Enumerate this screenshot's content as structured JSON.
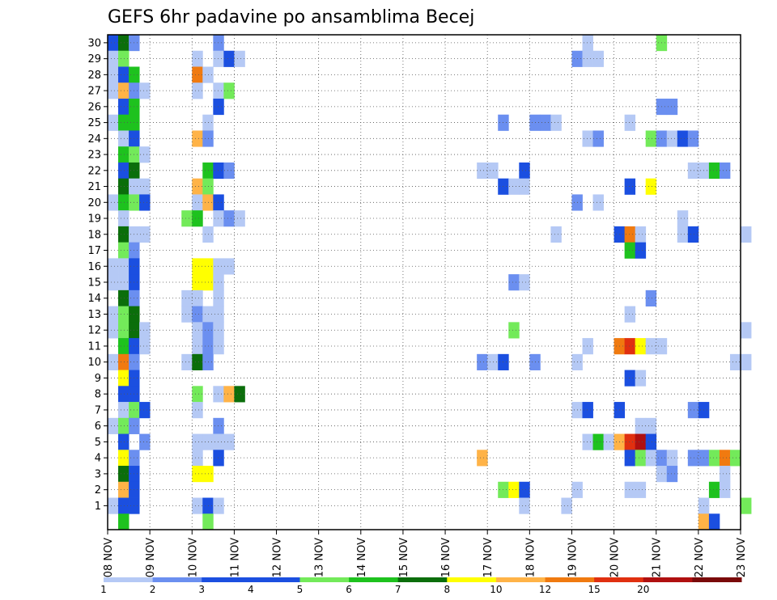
{
  "chart_data": {
    "type": "heatmap",
    "title": "GEFS 6hr padavine po ansamblima Becej",
    "xlabel": "",
    "ylabel": "",
    "x_ticks": [
      "08 NOV",
      "09 NOV",
      "10 NOV",
      "11 NOV",
      "12 NOV",
      "13 NOV",
      "14 NOV",
      "15 NOV",
      "16 NOV",
      "17 NOV",
      "18 NOV",
      "19 NOV",
      "20 NOV",
      "21 NOV",
      "22 NOV",
      "23 NOV"
    ],
    "y_ticks": [
      "1",
      "2",
      "3",
      "4",
      "5",
      "6",
      "7",
      "8",
      "9",
      "10",
      "11",
      "12",
      "13",
      "14",
      "15",
      "16",
      "17",
      "18",
      "19",
      "20",
      "21",
      "22",
      "23",
      "24",
      "25",
      "26",
      "27",
      "28",
      "29",
      "30"
    ],
    "grid": true,
    "time_step_hours": 6,
    "colorbar": {
      "labels": [
        "1",
        "2",
        "3",
        "4",
        "5",
        "6",
        "7",
        "8",
        "10",
        "12",
        "15",
        "20"
      ],
      "colors": [
        "#b5c9f5",
        "#6b8ff0",
        "#1b4fe0",
        "#1b4fe0",
        "#73ea5a",
        "#1ec21e",
        "#0b6e0b",
        "#ffff00",
        "#ffb347",
        "#f07a10",
        "#e03010",
        "#b01010",
        "#7a0a0a"
      ]
    },
    "colors": {
      "1": "#b5c9f5",
      "2": "#6b8ff0",
      "3": "#1b4fe0",
      "4": "#73ea5a",
      "5": "#1ec21e",
      "6": "#0b6e0b",
      "7": "#ffff00",
      "8": "#ffb347",
      "9": "#f07a10",
      "10": "#e03010",
      "11": "#b01010",
      "12": "#7a0a0a"
    },
    "cells": [
      [
        30,
        0,
        3
      ],
      [
        30,
        1,
        6
      ],
      [
        30,
        2,
        2
      ],
      [
        30,
        10,
        2
      ],
      [
        30,
        45,
        1
      ],
      [
        30,
        52,
        4
      ],
      [
        29,
        0,
        1
      ],
      [
        29,
        1,
        4
      ],
      [
        29,
        8,
        1
      ],
      [
        29,
        10,
        1
      ],
      [
        29,
        11,
        3
      ],
      [
        29,
        12,
        1
      ],
      [
        29,
        44,
        2
      ],
      [
        29,
        45,
        1
      ],
      [
        29,
        46,
        1
      ],
      [
        28,
        0,
        1
      ],
      [
        28,
        1,
        3
      ],
      [
        28,
        2,
        5
      ],
      [
        28,
        8,
        9
      ],
      [
        28,
        9,
        1
      ],
      [
        27,
        0,
        1
      ],
      [
        27,
        1,
        8
      ],
      [
        27,
        2,
        2
      ],
      [
        27,
        3,
        1
      ],
      [
        27,
        8,
        1
      ],
      [
        27,
        10,
        1
      ],
      [
        27,
        11,
        4
      ],
      [
        26,
        1,
        3
      ],
      [
        26,
        2,
        5
      ],
      [
        26,
        10,
        3
      ],
      [
        26,
        52,
        2
      ],
      [
        26,
        53,
        2
      ],
      [
        25,
        0,
        1
      ],
      [
        25,
        1,
        5
      ],
      [
        25,
        2,
        5
      ],
      [
        25,
        9,
        1
      ],
      [
        25,
        37,
        2
      ],
      [
        25,
        40,
        2
      ],
      [
        25,
        41,
        2
      ],
      [
        25,
        42,
        1
      ],
      [
        25,
        49,
        1
      ],
      [
        24,
        1,
        1
      ],
      [
        24,
        2,
        3
      ],
      [
        24,
        8,
        8
      ],
      [
        24,
        9,
        2
      ],
      [
        24,
        45,
        1
      ],
      [
        24,
        46,
        2
      ],
      [
        24,
        51,
        4
      ],
      [
        24,
        52,
        2
      ],
      [
        24,
        53,
        1
      ],
      [
        24,
        54,
        3
      ],
      [
        24,
        55,
        2
      ],
      [
        23,
        1,
        5
      ],
      [
        23,
        2,
        4
      ],
      [
        23,
        3,
        1
      ],
      [
        22,
        1,
        3
      ],
      [
        22,
        2,
        6
      ],
      [
        22,
        9,
        5
      ],
      [
        22,
        10,
        3
      ],
      [
        22,
        11,
        2
      ],
      [
        22,
        35,
        1
      ],
      [
        22,
        36,
        1
      ],
      [
        22,
        39,
        3
      ],
      [
        22,
        55,
        1
      ],
      [
        22,
        56,
        1
      ],
      [
        22,
        57,
        5
      ],
      [
        22,
        58,
        2
      ],
      [
        21,
        1,
        6
      ],
      [
        21,
        2,
        1
      ],
      [
        21,
        3,
        1
      ],
      [
        21,
        8,
        8
      ],
      [
        21,
        9,
        4
      ],
      [
        21,
        37,
        3
      ],
      [
        21,
        38,
        1
      ],
      [
        21,
        39,
        1
      ],
      [
        21,
        49,
        3
      ],
      [
        21,
        51,
        7
      ],
      [
        20,
        0,
        1
      ],
      [
        20,
        1,
        5
      ],
      [
        20,
        2,
        4
      ],
      [
        20,
        3,
        3
      ],
      [
        20,
        8,
        1
      ],
      [
        20,
        9,
        8
      ],
      [
        20,
        10,
        3
      ],
      [
        20,
        44,
        2
      ],
      [
        20,
        46,
        1
      ],
      [
        19,
        1,
        1
      ],
      [
        19,
        7,
        4
      ],
      [
        19,
        8,
        5
      ],
      [
        19,
        10,
        1
      ],
      [
        19,
        11,
        2
      ],
      [
        19,
        12,
        1
      ],
      [
        19,
        54,
        1
      ],
      [
        18,
        1,
        6
      ],
      [
        18,
        2,
        1
      ],
      [
        18,
        3,
        1
      ],
      [
        18,
        9,
        1
      ],
      [
        18,
        42,
        1
      ],
      [
        18,
        48,
        3
      ],
      [
        18,
        49,
        9
      ],
      [
        18,
        50,
        1
      ],
      [
        18,
        54,
        1
      ],
      [
        18,
        55,
        3
      ],
      [
        18,
        60,
        1
      ],
      [
        17,
        1,
        4
      ],
      [
        17,
        2,
        2
      ],
      [
        17,
        49,
        5
      ],
      [
        17,
        50,
        3
      ],
      [
        16,
        0,
        1
      ],
      [
        16,
        1,
        1
      ],
      [
        16,
        2,
        3
      ],
      [
        16,
        8,
        7
      ],
      [
        16,
        9,
        7
      ],
      [
        16,
        10,
        1
      ],
      [
        16,
        11,
        1
      ],
      [
        15,
        0,
        1
      ],
      [
        15,
        1,
        1
      ],
      [
        15,
        2,
        3
      ],
      [
        15,
        8,
        7
      ],
      [
        15,
        9,
        7
      ],
      [
        15,
        10,
        1
      ],
      [
        15,
        38,
        2
      ],
      [
        15,
        39,
        1
      ],
      [
        14,
        1,
        6
      ],
      [
        14,
        2,
        2
      ],
      [
        14,
        7,
        1
      ],
      [
        14,
        8,
        1
      ],
      [
        14,
        10,
        1
      ],
      [
        14,
        51,
        2
      ],
      [
        13,
        0,
        1
      ],
      [
        13,
        1,
        4
      ],
      [
        13,
        2,
        6
      ],
      [
        13,
        7,
        1
      ],
      [
        13,
        8,
        2
      ],
      [
        13,
        9,
        1
      ],
      [
        13,
        10,
        1
      ],
      [
        13,
        49,
        1
      ],
      [
        12,
        0,
        1
      ],
      [
        12,
        1,
        4
      ],
      [
        12,
        2,
        6
      ],
      [
        12,
        3,
        1
      ],
      [
        12,
        8,
        1
      ],
      [
        12,
        9,
        2
      ],
      [
        12,
        10,
        1
      ],
      [
        12,
        38,
        4
      ],
      [
        12,
        60,
        1
      ],
      [
        11,
        1,
        5
      ],
      [
        11,
        2,
        3
      ],
      [
        11,
        3,
        1
      ],
      [
        11,
        8,
        1
      ],
      [
        11,
        9,
        2
      ],
      [
        11,
        10,
        1
      ],
      [
        11,
        45,
        1
      ],
      [
        11,
        48,
        9
      ],
      [
        11,
        49,
        10
      ],
      [
        11,
        50,
        7
      ],
      [
        11,
        51,
        1
      ],
      [
        11,
        52,
        1
      ],
      [
        10,
        0,
        1
      ],
      [
        10,
        1,
        9
      ],
      [
        10,
        2,
        2
      ],
      [
        10,
        7,
        1
      ],
      [
        10,
        8,
        6
      ],
      [
        10,
        9,
        2
      ],
      [
        10,
        35,
        2
      ],
      [
        10,
        36,
        1
      ],
      [
        10,
        37,
        3
      ],
      [
        10,
        40,
        2
      ],
      [
        10,
        44,
        1
      ],
      [
        10,
        59,
        1
      ],
      [
        10,
        60,
        1
      ],
      [
        9,
        1,
        7
      ],
      [
        9,
        2,
        3
      ],
      [
        9,
        49,
        3
      ],
      [
        9,
        50,
        1
      ],
      [
        8,
        1,
        3
      ],
      [
        8,
        2,
        3
      ],
      [
        8,
        8,
        4
      ],
      [
        8,
        10,
        1
      ],
      [
        8,
        11,
        8
      ],
      [
        8,
        12,
        6
      ],
      [
        7,
        1,
        1
      ],
      [
        7,
        2,
        4
      ],
      [
        7,
        3,
        3
      ],
      [
        7,
        8,
        1
      ],
      [
        7,
        44,
        1
      ],
      [
        7,
        45,
        3
      ],
      [
        7,
        48,
        3
      ],
      [
        7,
        55,
        2
      ],
      [
        7,
        56,
        3
      ],
      [
        6,
        0,
        1
      ],
      [
        6,
        1,
        4
      ],
      [
        6,
        2,
        2
      ],
      [
        6,
        10,
        2
      ],
      [
        6,
        50,
        1
      ],
      [
        6,
        51,
        1
      ],
      [
        5,
        1,
        3
      ],
      [
        5,
        3,
        2
      ],
      [
        5,
        8,
        1
      ],
      [
        5,
        9,
        1
      ],
      [
        5,
        10,
        1
      ],
      [
        5,
        11,
        1
      ],
      [
        5,
        45,
        1
      ],
      [
        5,
        46,
        5
      ],
      [
        5,
        47,
        1
      ],
      [
        5,
        48,
        8
      ],
      [
        5,
        49,
        10
      ],
      [
        5,
        50,
        11
      ],
      [
        5,
        51,
        3
      ],
      [
        4,
        1,
        7
      ],
      [
        4,
        2,
        2
      ],
      [
        4,
        8,
        1
      ],
      [
        4,
        10,
        3
      ],
      [
        4,
        35,
        8
      ],
      [
        4,
        49,
        3
      ],
      [
        4,
        50,
        4
      ],
      [
        4,
        51,
        1
      ],
      [
        4,
        52,
        2
      ],
      [
        4,
        53,
        1
      ],
      [
        4,
        55,
        2
      ],
      [
        4,
        56,
        2
      ],
      [
        4,
        57,
        4
      ],
      [
        4,
        58,
        9
      ],
      [
        4,
        59,
        4
      ],
      [
        3,
        1,
        6
      ],
      [
        3,
        2,
        3
      ],
      [
        3,
        8,
        7
      ],
      [
        3,
        9,
        7
      ],
      [
        3,
        52,
        1
      ],
      [
        3,
        53,
        2
      ],
      [
        3,
        58,
        1
      ],
      [
        2,
        1,
        8
      ],
      [
        2,
        2,
        3
      ],
      [
        2,
        37,
        4
      ],
      [
        2,
        38,
        7
      ],
      [
        2,
        39,
        3
      ],
      [
        2,
        44,
        1
      ],
      [
        2,
        49,
        1
      ],
      [
        2,
        50,
        1
      ],
      [
        2,
        57,
        5
      ],
      [
        2,
        58,
        1
      ],
      [
        1,
        0,
        1
      ],
      [
        1,
        1,
        3
      ],
      [
        1,
        2,
        3
      ],
      [
        1,
        8,
        1
      ],
      [
        1,
        9,
        3
      ],
      [
        1,
        10,
        1
      ],
      [
        1,
        39,
        1
      ],
      [
        1,
        43,
        1
      ],
      [
        1,
        56,
        1
      ],
      [
        1,
        60,
        4
      ],
      [
        0,
        1,
        5
      ],
      [
        0,
        9,
        4
      ],
      [
        0,
        56,
        8
      ],
      [
        0,
        57,
        3
      ]
    ]
  }
}
